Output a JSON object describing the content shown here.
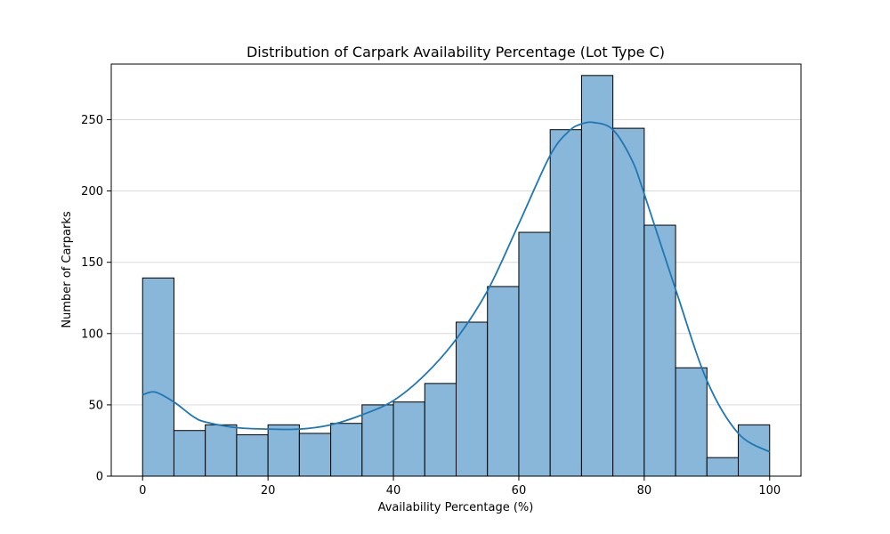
{
  "chart_data": {
    "type": "bar",
    "subtype": "histogram",
    "title": "Distribution of Carpark Availability Percentage (Lot Type C)",
    "xlabel": "Availability Percentage (%)",
    "ylabel": "Number of Carparks",
    "xlim": [
      -5,
      105
    ],
    "ylim": [
      0,
      289
    ],
    "x_ticks": [
      0,
      20,
      40,
      60,
      80,
      100
    ],
    "y_ticks": [
      0,
      50,
      100,
      150,
      200,
      250
    ],
    "grid": "horizontal",
    "bins": [
      {
        "start": 0,
        "end": 5,
        "count": 139
      },
      {
        "start": 5,
        "end": 10,
        "count": 32
      },
      {
        "start": 10,
        "end": 15,
        "count": 36
      },
      {
        "start": 15,
        "end": 20,
        "count": 29
      },
      {
        "start": 20,
        "end": 25,
        "count": 36
      },
      {
        "start": 25,
        "end": 30,
        "count": 30
      },
      {
        "start": 30,
        "end": 35,
        "count": 37
      },
      {
        "start": 35,
        "end": 40,
        "count": 50
      },
      {
        "start": 40,
        "end": 45,
        "count": 52
      },
      {
        "start": 45,
        "end": 50,
        "count": 65
      },
      {
        "start": 50,
        "end": 55,
        "count": 108
      },
      {
        "start": 55,
        "end": 60,
        "count": 133
      },
      {
        "start": 60,
        "end": 65,
        "count": 171
      },
      {
        "start": 65,
        "end": 70,
        "count": 243
      },
      {
        "start": 70,
        "end": 75,
        "count": 281
      },
      {
        "start": 75,
        "end": 80,
        "count": 244
      },
      {
        "start": 80,
        "end": 85,
        "count": 176
      },
      {
        "start": 85,
        "end": 90,
        "count": 76
      },
      {
        "start": 90,
        "end": 95,
        "count": 13
      },
      {
        "start": 95,
        "end": 100,
        "count": 36
      }
    ],
    "kde": {
      "x": [
        0,
        2,
        5,
        8,
        10,
        15,
        20,
        25,
        30,
        35,
        40,
        45,
        50,
        55,
        60,
        65,
        68,
        70,
        72,
        75,
        78,
        80,
        85,
        90,
        95,
        100
      ],
      "y": [
        57,
        59,
        52,
        42,
        38,
        34,
        33,
        33,
        36,
        43,
        53,
        71,
        96,
        130,
        177,
        225,
        242,
        247,
        248,
        243,
        222,
        198,
        131,
        67,
        30,
        17
      ]
    },
    "colors": {
      "bar_fill": "#89b7da",
      "bar_edge": "#000000",
      "kde_line": "#1f77b4",
      "grid": "#d9d9d9"
    }
  }
}
